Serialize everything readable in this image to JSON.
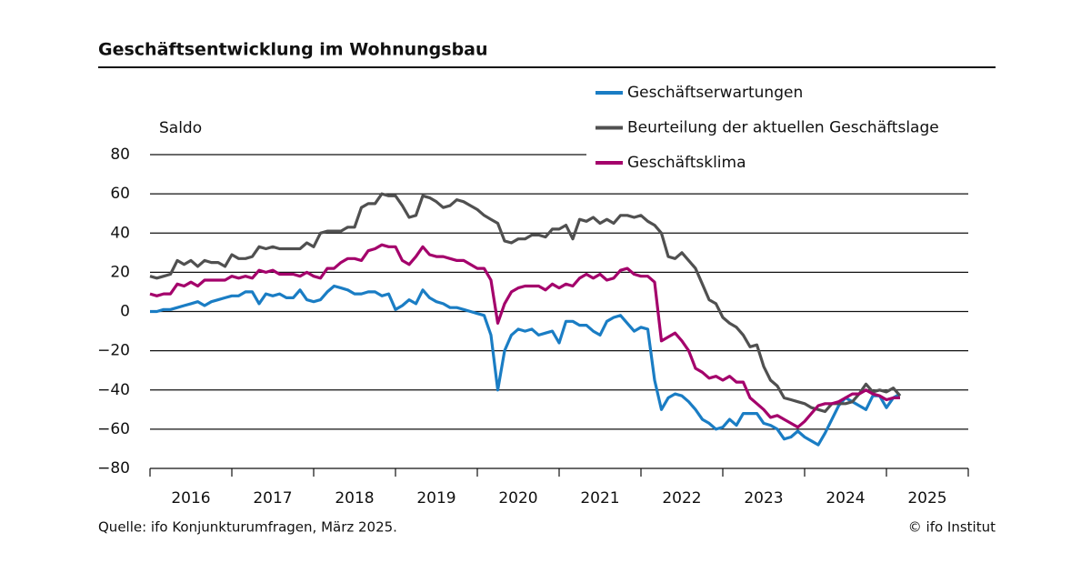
{
  "chart_data": {
    "type": "line",
    "title": "Geschäftsentwicklung  im Wohnungsbau",
    "y_label": "Saldo",
    "source": "Quelle: ifo Konjunkturumfragen, März 2025.",
    "credit": "© ifo Institut",
    "ylim": [
      -80,
      80
    ],
    "yticks": [
      {
        "value": -80,
        "label": "−80"
      },
      {
        "value": -60,
        "label": "−60"
      },
      {
        "value": -40,
        "label": "−40"
      },
      {
        "value": -20,
        "label": "−20"
      },
      0,
      20,
      40,
      60,
      80
    ],
    "xlim": [
      2016,
      2026
    ],
    "xtick_marks": [
      2016,
      2017,
      2018,
      2019,
      2020,
      2021,
      2022,
      2023,
      2024,
      2025,
      2026
    ],
    "xticks": [
      {
        "value": 2016.5,
        "label": "2016"
      },
      {
        "value": 2017.5,
        "label": "2017"
      },
      {
        "value": 2018.5,
        "label": "2018"
      },
      {
        "value": 2019.5,
        "label": "2019"
      },
      {
        "value": 2020.5,
        "label": "2020"
      },
      {
        "value": 2021.5,
        "label": "2021"
      },
      {
        "value": 2022.5,
        "label": "2022"
      },
      {
        "value": 2023.5,
        "label": "2023"
      },
      {
        "value": 2024.5,
        "label": "2024"
      },
      {
        "value": 2025.5,
        "label": "2025"
      }
    ],
    "grid": true,
    "x": [
      2016,
      2016.083,
      2016.167,
      2016.25,
      2016.333,
      2016.417,
      2016.5,
      2016.583,
      2016.667,
      2016.75,
      2016.833,
      2016.917,
      2017,
      2017.083,
      2017.167,
      2017.25,
      2017.333,
      2017.417,
      2017.5,
      2017.583,
      2017.667,
      2017.75,
      2017.833,
      2017.917,
      2018,
      2018.083,
      2018.167,
      2018.25,
      2018.333,
      2018.417,
      2018.5,
      2018.583,
      2018.667,
      2018.75,
      2018.833,
      2018.917,
      2019,
      2019.083,
      2019.167,
      2019.25,
      2019.333,
      2019.417,
      2019.5,
      2019.583,
      2019.667,
      2019.75,
      2019.833,
      2019.917,
      2020,
      2020.083,
      2020.167,
      2020.25,
      2020.333,
      2020.417,
      2020.5,
      2020.583,
      2020.667,
      2020.75,
      2020.833,
      2020.917,
      2021,
      2021.083,
      2021.167,
      2021.25,
      2021.333,
      2021.417,
      2021.5,
      2021.583,
      2021.667,
      2021.75,
      2021.833,
      2021.917,
      2022,
      2022.083,
      2022.167,
      2022.25,
      2022.333,
      2022.417,
      2022.5,
      2022.583,
      2022.667,
      2022.75,
      2022.833,
      2022.917,
      2023,
      2023.083,
      2023.167,
      2023.25,
      2023.333,
      2023.417,
      2023.5,
      2023.583,
      2023.667,
      2023.75,
      2023.833,
      2023.917,
      2024,
      2024.083,
      2024.167,
      2024.25,
      2024.333,
      2024.417,
      2024.5,
      2024.583,
      2024.667,
      2024.75,
      2024.833,
      2024.917,
      2025,
      2025.083,
      2025.167
    ],
    "series": [
      {
        "name": "Geschäftserwartungen",
        "color": "#1a7dc4",
        "values": [
          0,
          0,
          1,
          1,
          2,
          3,
          4,
          5,
          3,
          5,
          6,
          7,
          8,
          8,
          10,
          10,
          4,
          9,
          8,
          9,
          7,
          7,
          11,
          6,
          5,
          6,
          10,
          13,
          12,
          11,
          9,
          9,
          10,
          10,
          8,
          9,
          1,
          3,
          6,
          4,
          11,
          7,
          5,
          4,
          2,
          2,
          1,
          0,
          -1,
          -2,
          -12,
          -40,
          -20,
          -12,
          -9,
          -10,
          -9,
          -12,
          -11,
          -10,
          -16,
          -5,
          -5,
          -7,
          -7,
          -10,
          -12,
          -5,
          -3,
          -2,
          -6,
          -10,
          -8,
          -9,
          -35,
          -50,
          -44,
          -42,
          -43,
          -46,
          -50,
          -55,
          -57,
          -60,
          -59,
          -55,
          -58,
          -52,
          -52,
          -52,
          -57,
          -58,
          -60,
          -65,
          -64,
          -61,
          -64,
          -66,
          -68,
          -62,
          -55,
          -48,
          -44,
          -46,
          -48,
          -50,
          -43,
          -43,
          -49,
          -44,
          -42
        ]
      },
      {
        "name": "Beurteilung der aktuellen Geschäftslage",
        "color": "#505050",
        "values": [
          18,
          17,
          18,
          19,
          26,
          24,
          26,
          23,
          26,
          25,
          25,
          23,
          29,
          27,
          27,
          28,
          33,
          32,
          33,
          32,
          32,
          32,
          32,
          35,
          33,
          40,
          41,
          41,
          41,
          43,
          43,
          53,
          55,
          55,
          60,
          59,
          59,
          54,
          48,
          49,
          59,
          58,
          56,
          53,
          54,
          57,
          56,
          54,
          52,
          49,
          47,
          45,
          36,
          35,
          37,
          37,
          39,
          39,
          38,
          42,
          42,
          44,
          37,
          47,
          46,
          48,
          45,
          47,
          45,
          49,
          49,
          48,
          49,
          46,
          44,
          40,
          28,
          27,
          30,
          26,
          22,
          14,
          6,
          4,
          -3,
          -6,
          -8,
          -12,
          -18,
          -17,
          -28,
          -35,
          -38,
          -44,
          -45,
          -46,
          -47,
          -49,
          -50,
          -51,
          -47,
          -47,
          -47,
          -46,
          -42,
          -37,
          -41,
          -40,
          -41,
          -39,
          -43
        ]
      },
      {
        "name": "Geschäftsklima",
        "color": "#a4006b",
        "values": [
          9,
          8,
          9,
          9,
          14,
          13,
          15,
          13,
          16,
          16,
          16,
          16,
          18,
          17,
          18,
          17,
          21,
          20,
          21,
          19,
          19,
          19,
          18,
          20,
          18,
          17,
          22,
          22,
          25,
          27,
          27,
          26,
          31,
          32,
          34,
          33,
          33,
          26,
          24,
          28,
          33,
          29,
          28,
          28,
          27,
          26,
          26,
          24,
          22,
          22,
          16,
          -6,
          4,
          10,
          12,
          13,
          13,
          13,
          11,
          14,
          12,
          14,
          13,
          17,
          19,
          17,
          19,
          16,
          17,
          21,
          22,
          19,
          18,
          18,
          15,
          -15,
          -13,
          -11,
          -15,
          -20,
          -29,
          -31,
          -34,
          -33,
          -35,
          -33,
          -36,
          -36,
          -44,
          -47,
          -50,
          -54,
          -53,
          -55,
          -57,
          -59,
          -56,
          -52,
          -48,
          -47,
          -47,
          -46,
          -44,
          -42,
          -42,
          -40,
          -42,
          -43,
          -45,
          -44,
          -44
        ]
      }
    ]
  }
}
